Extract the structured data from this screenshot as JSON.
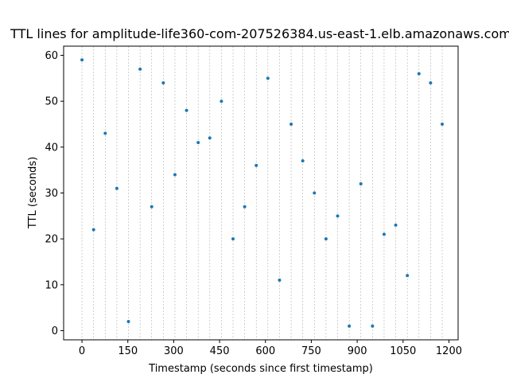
{
  "chart_data": {
    "type": "scatter",
    "title": "TTL lines for  amplitude-life360-com-207526384.us-east-1.elb.amazonaws.com",
    "xlabel": "Timestamp (seconds since first timestamp)",
    "ylabel": "TTL (seconds)",
    "xlim": [
      -60,
      1230
    ],
    "ylim": [
      -2,
      62
    ],
    "xticks": [
      0,
      150,
      300,
      450,
      600,
      750,
      900,
      1050,
      1200
    ],
    "yticks": [
      0,
      10,
      20,
      30,
      40,
      50,
      60
    ],
    "grid": "vertical dashed lines at each point timestamp",
    "marker_color": "#1f77b4",
    "x": [
      0,
      38,
      76,
      114,
      152,
      190,
      228,
      266,
      304,
      342,
      380,
      418,
      456,
      494,
      532,
      570,
      608,
      646,
      684,
      722,
      760,
      798,
      836,
      874,
      912,
      950,
      988,
      1026,
      1064,
      1102,
      1140,
      1178
    ],
    "y": [
      59,
      22,
      43,
      31,
      2,
      57,
      27,
      54,
      34,
      48,
      41,
      42,
      50,
      20,
      27,
      36,
      55,
      11,
      45,
      37,
      30,
      20,
      25,
      1,
      32,
      1,
      21,
      23,
      12,
      56,
      54,
      45
    ]
  }
}
